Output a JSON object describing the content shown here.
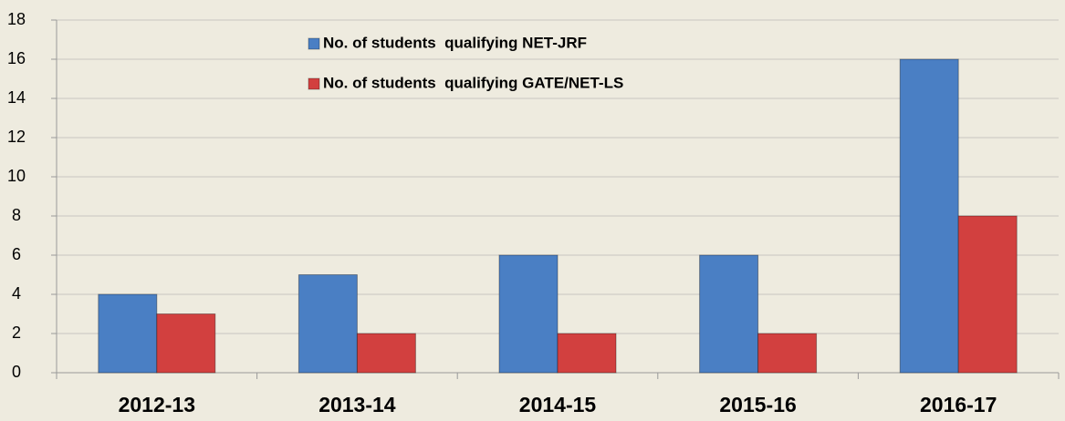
{
  "chart_data": {
    "type": "bar",
    "categories": [
      "2012-13",
      "2013-14",
      "2014-15",
      "2015-16",
      "2016-17"
    ],
    "series": [
      {
        "name": "No. of students  qualifying NET-JRF",
        "color": "#4a7fc4",
        "values": [
          4,
          5,
          6,
          6,
          16
        ]
      },
      {
        "name": "No. of students  qualifying GATE/NET-LS",
        "color": "#d2403f",
        "values": [
          3,
          2,
          2,
          2,
          8
        ]
      }
    ],
    "ylim": [
      0,
      18
    ],
    "yticks": [
      0,
      2,
      4,
      6,
      8,
      10,
      12,
      14,
      16,
      18
    ],
    "grid": true,
    "legend": "top"
  }
}
